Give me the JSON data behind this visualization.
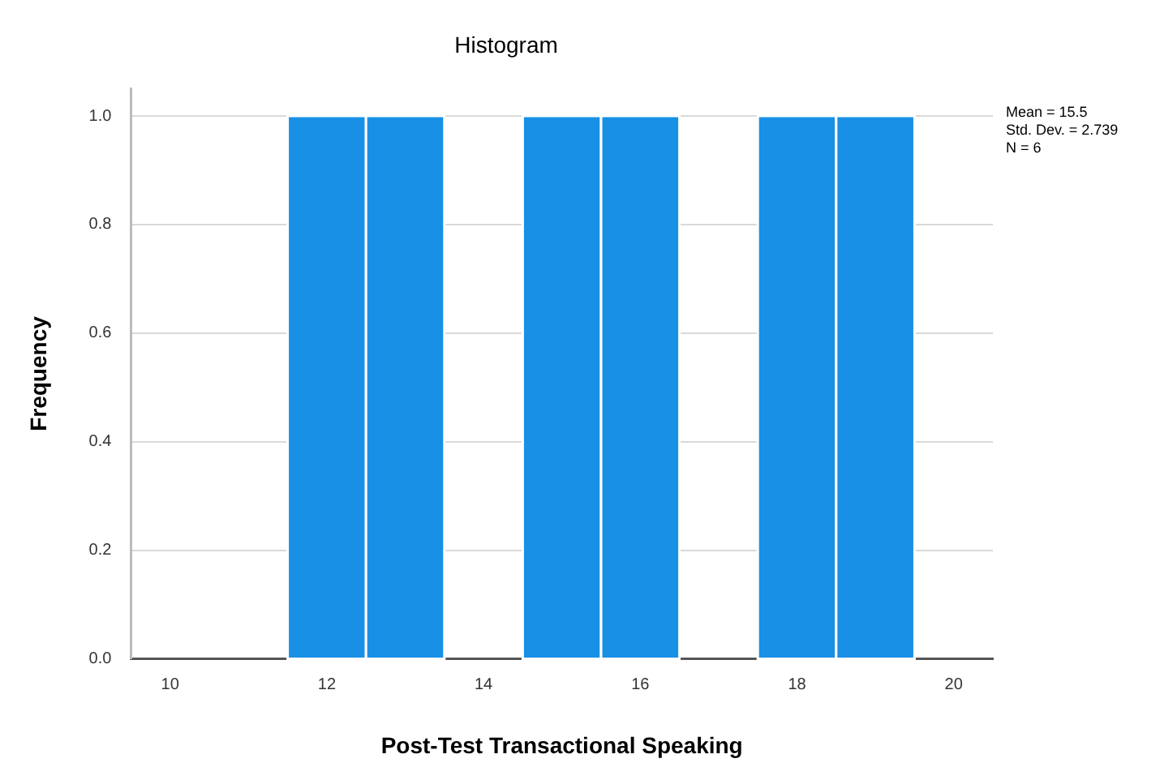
{
  "chart_data": {
    "type": "histogram",
    "title": "Histogram",
    "xlabel": "Post-Test Transactional Speaking",
    "ylabel": "Frequency",
    "bins": [
      11.5,
      12.5,
      13.5,
      14.5,
      15.5,
      16.5,
      17.5,
      18.5,
      19.5
    ],
    "values": [
      1,
      1,
      0,
      1,
      1,
      0,
      1,
      1
    ],
    "color": "#1790e6",
    "xlim": [
      9.5,
      20.5
    ],
    "xticks": [
      10,
      12,
      14,
      16,
      18,
      20
    ],
    "ylim": [
      0,
      1.05
    ],
    "yticks": [
      {
        "value": 0,
        "label": "0.0"
      },
      {
        "value": 0.2,
        "label": "0.2"
      },
      {
        "value": 0.4,
        "label": "0.4"
      },
      {
        "value": 0.6,
        "label": "0.6"
      },
      {
        "value": 0.8,
        "label": "0.8"
      },
      {
        "value": 1,
        "label": "1.0"
      }
    ],
    "grid": "y",
    "legend": false,
    "annotations": [
      "Mean = 15.5",
      "Std. Dev. = 2.739",
      "N = 6"
    ]
  }
}
